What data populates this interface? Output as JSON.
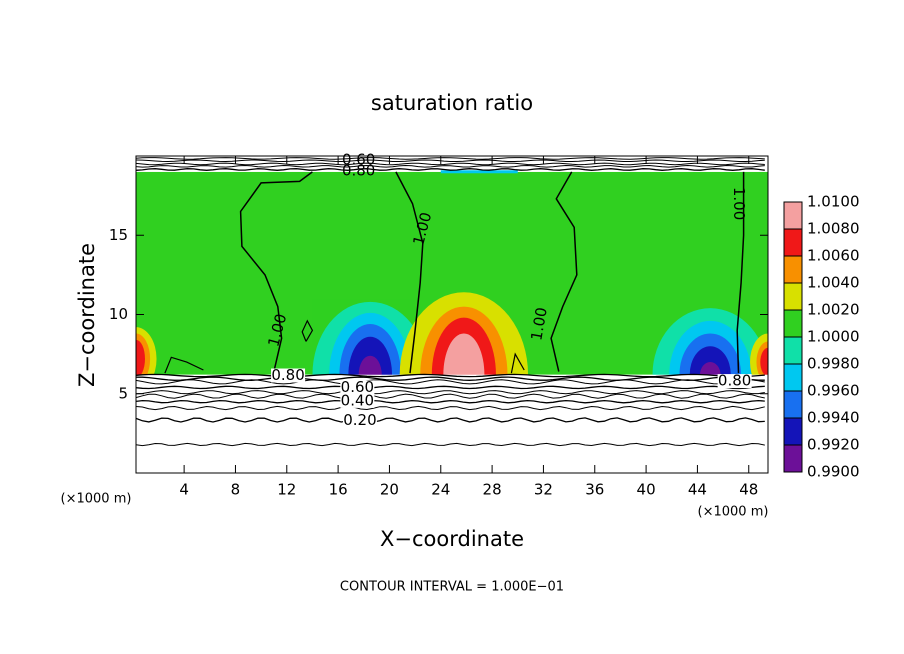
{
  "chart_data": {
    "type": "contour",
    "title": "saturation ratio",
    "x_label": "X−coordinate",
    "y_label": "Z−coordinate",
    "x_unit": "(×1000 m)",
    "y_unit": "(×1000 m)",
    "note": "CONTOUR INTERVAL = 1.000E−01",
    "xlim": [
      0.25,
      49.5
    ],
    "ylim": [
      0,
      20
    ],
    "xticks": [
      4,
      8,
      12,
      16,
      20,
      24,
      28,
      32,
      36,
      40,
      44,
      48
    ],
    "yticks": [
      5,
      10,
      15
    ],
    "colorbar": {
      "ticks": [
        {
          "value": 0.99,
          "label": "0.9900"
        },
        {
          "value": 0.992,
          "label": "0.9920"
        },
        {
          "value": 0.994,
          "label": "0.9940"
        },
        {
          "value": 0.996,
          "label": "0.9960"
        },
        {
          "value": 0.998,
          "label": "0.9980"
        },
        {
          "value": 1.0,
          "label": "1.0000"
        },
        {
          "value": 1.002,
          "label": "1.0020"
        },
        {
          "value": 1.004,
          "label": "1.0040"
        },
        {
          "value": 1.006,
          "label": "1.0060"
        },
        {
          "value": 1.008,
          "label": "1.0080"
        },
        {
          "value": 1.01,
          "label": "1.0100"
        }
      ],
      "colors": [
        "#6c1098",
        "#1414b8",
        "#1870f0",
        "#00c8f0",
        "#10e0a8",
        "#30d020",
        "#d8e000",
        "#f89000",
        "#f01818",
        "#f4a0a0"
      ]
    },
    "contour_labels": [
      {
        "value": 0.6,
        "label": "0.60"
      },
      {
        "value": 0.8,
        "label": "0.80"
      },
      {
        "value": 1.0,
        "label": "1.00"
      },
      {
        "value": 1.0,
        "label": "1.00"
      },
      {
        "value": 1.0,
        "label": "1.00"
      },
      {
        "value": 1.0,
        "label": "1.00"
      },
      {
        "value": 0.8,
        "label": "0.80"
      },
      {
        "value": 0.6,
        "label": "0.60"
      },
      {
        "value": 0.4,
        "label": "0.40"
      },
      {
        "value": 0.2,
        "label": "0.20"
      },
      {
        "value": 0.8,
        "label": "0.80"
      }
    ]
  }
}
